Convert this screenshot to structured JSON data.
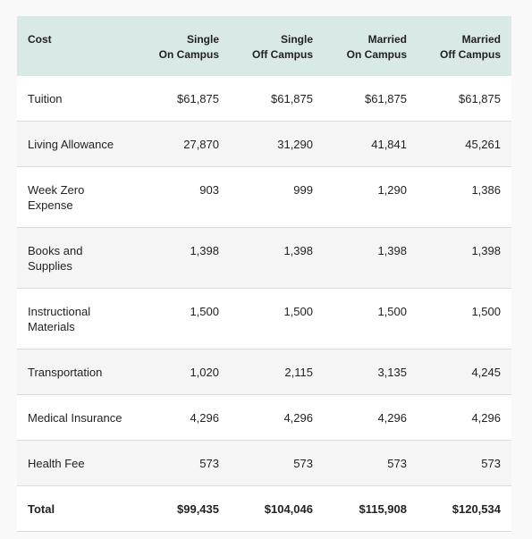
{
  "table": {
    "header": [
      {
        "lines": [
          "Cost"
        ]
      },
      {
        "lines": [
          "Single",
          "On Campus"
        ]
      },
      {
        "lines": [
          "Single",
          "Off Campus"
        ]
      },
      {
        "lines": [
          "Married",
          "On Campus"
        ]
      },
      {
        "lines": [
          "Married",
          "Off Campus"
        ]
      }
    ],
    "rows": [
      [
        "Tuition",
        "$61,875",
        "$61,875",
        "$61,875",
        "$61,875"
      ],
      [
        "Living Allowance",
        "27,870",
        "31,290",
        "41,841",
        "45,261"
      ],
      [
        "Week Zero Expense",
        "903",
        "999",
        "1,290",
        "1,386"
      ],
      [
        "Books and Supplies",
        "1,398",
        "1,398",
        "1,398",
        "1,398"
      ],
      [
        "Instructional Materials",
        "1,500",
        "1,500",
        "1,500",
        "1,500"
      ],
      [
        "Transportation",
        "1,020",
        "2,115",
        "3,135",
        "4,245"
      ],
      [
        "Medical Insurance",
        "4,296",
        "4,296",
        "4,296",
        "4,296"
      ],
      [
        "Health Fee",
        "573",
        "573",
        "573",
        "573"
      ],
      [
        "Total",
        "$99,435",
        "$104,046",
        "$115,908",
        "$120,534"
      ]
    ]
  }
}
